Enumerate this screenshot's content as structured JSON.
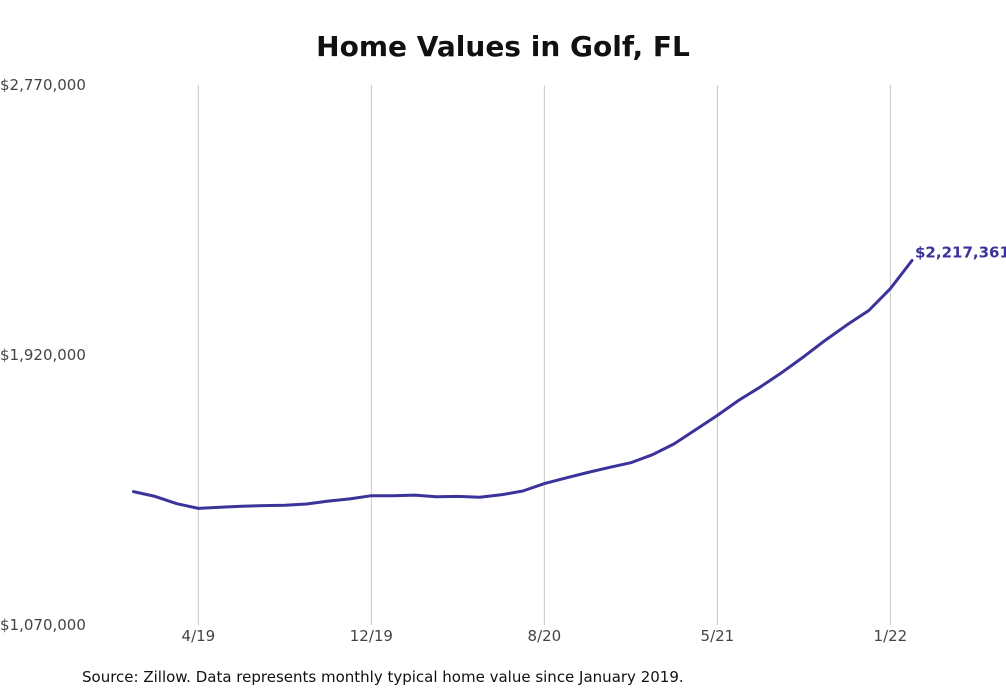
{
  "chart_data": {
    "type": "line",
    "title": "Home Values in Golf, FL",
    "xlabel": "",
    "ylabel": "",
    "ylim": [
      1070000,
      2770000
    ],
    "y_ticks": [
      "$2,770,000",
      "$1,920,000",
      "$1,070,000"
    ],
    "y_tick_values": [
      2770000,
      1920000,
      1070000
    ],
    "x_ticks": [
      "4/19",
      "12/19",
      "8/20",
      "5/21",
      "1/22"
    ],
    "x_tick_months": [
      3,
      11,
      19,
      27,
      35
    ],
    "grid": {
      "vertical": true,
      "horizontal": false
    },
    "last_value_label": "$2,217,361",
    "series": [
      {
        "color": "#3b3399",
        "x": [
          0,
          1,
          2,
          3,
          4,
          5,
          6,
          7,
          8,
          9,
          10,
          11,
          12,
          13,
          14,
          15,
          16,
          17,
          18,
          19,
          20,
          21,
          22,
          23,
          24,
          25,
          26,
          27,
          28,
          29,
          30,
          31,
          32,
          33,
          34,
          35,
          36
        ],
        "values": [
          1490000,
          1475000,
          1452000,
          1437000,
          1441000,
          1444000,
          1446000,
          1447000,
          1451000,
          1460000,
          1467000,
          1477000,
          1477000,
          1479000,
          1474000,
          1475000,
          1472000,
          1480000,
          1492000,
          1515000,
          1533000,
          1550000,
          1566000,
          1581000,
          1606000,
          1640000,
          1685000,
          1730000,
          1778000,
          1820000,
          1866000,
          1915000,
          1967000,
          2015000,
          2060000,
          2129000,
          2217361
        ]
      }
    ]
  },
  "source_note": "Source: Zillow. Data represents monthly typical home value since January 2019.",
  "colors": {
    "line": "#3b3399",
    "grid": "#c8c8c8",
    "tick_text": "#444444",
    "title": "#111111"
  }
}
